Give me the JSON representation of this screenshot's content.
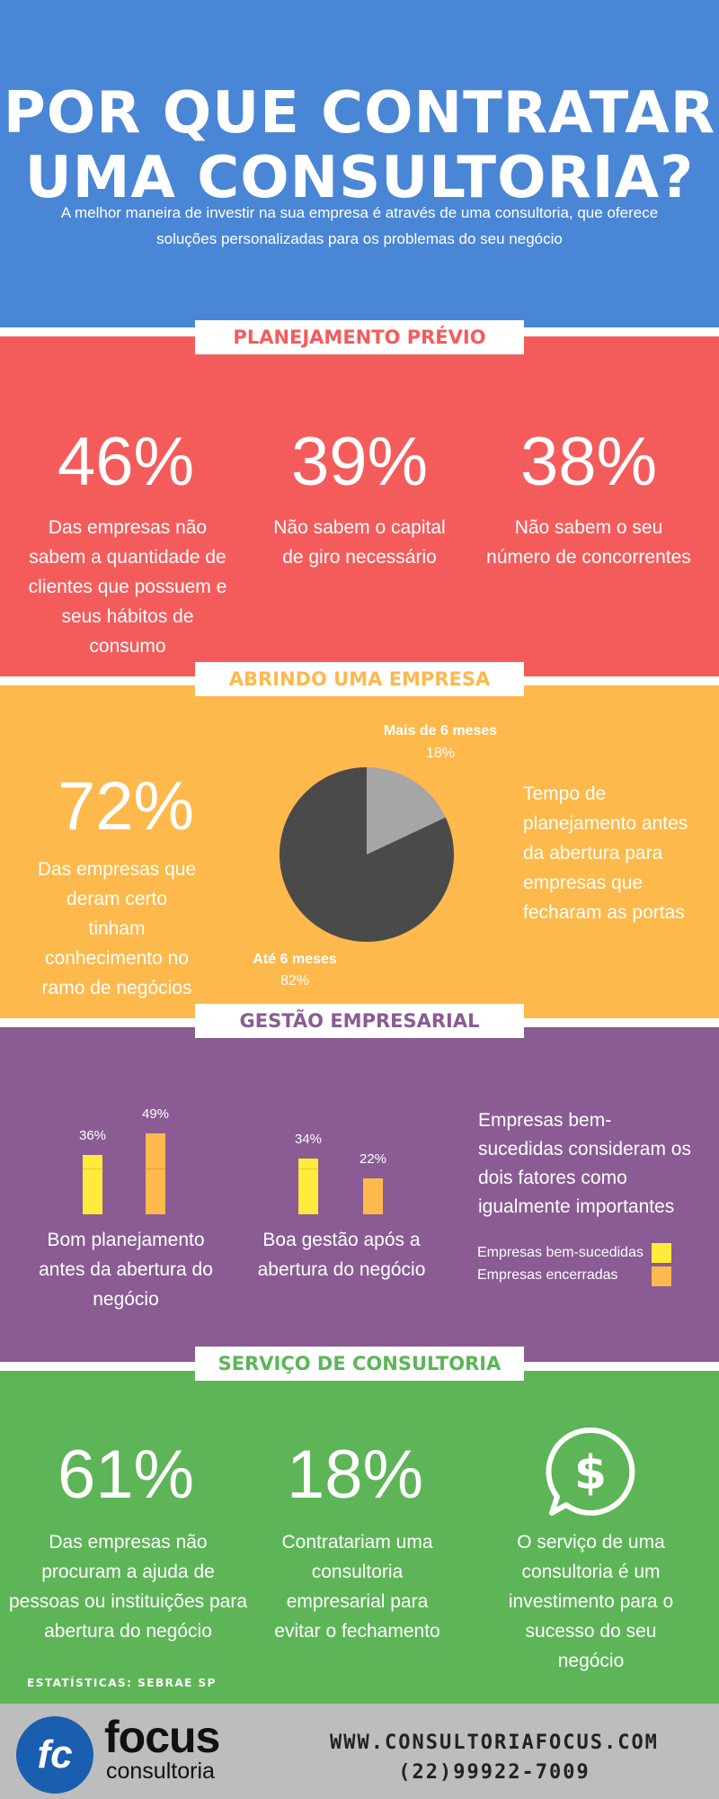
{
  "header": {
    "title": "POR QUE CONTRATAR\nUMA CONSULTORIA?",
    "subtitle": "A melhor maneira de investir na sua empresa é através de uma consultoria, que oferece soluções personalizadas para os problemas do seu negócio"
  },
  "sections": {
    "planejamento": {
      "label": "PLANEJAMENTO PRÉVIO",
      "color": "#F45C5C",
      "stats": [
        {
          "value": "46%",
          "text": "Das empresas não sabem a quantidade de clientes que possuem e seus hábitos de consumo"
        },
        {
          "value": "39%",
          "text": "Não sabem o capital de giro necessário"
        },
        {
          "value": "38%",
          "text": "Não sabem o seu número de concorrentes"
        }
      ]
    },
    "abrindo": {
      "label": "ABRINDO UMA EMPRESA",
      "color": "#FDB94C",
      "stat": {
        "value": "72%",
        "text": "Das empresas que deram certo tinham conhecimento no ramo de negócios"
      },
      "side_text": "Tempo de planejamento antes da abertura para empresas que fecharam as portas"
    },
    "gestao": {
      "label": "GESTÃO EMPRESARIAL",
      "color": "#8A5C93",
      "group1_label": "Bom planejamento antes da abertura do negócio",
      "group2_label": "Boa gestão após a abertura do negócio",
      "side_text": "Empresas bem-sucedidas consideram os dois fatores como igualmente importantes",
      "legend": [
        "Empresas bem-sucedidas",
        "Empresas encerradas"
      ],
      "legend_colors": [
        "#FFEB3B",
        "#FDB94C"
      ]
    },
    "servico": {
      "label": "SERVIÇO DE CONSULTORIA",
      "color": "#5DB558",
      "stats": [
        {
          "value": "61%",
          "text": "Das empresas não procuram a ajuda de pessoas ou instituições para abertura do negócio"
        },
        {
          "value": "18%",
          "text": "Contratariam uma consultoria empresarial para evitar o fechamento"
        }
      ],
      "icon": "dollar-speech-bubble-icon",
      "icon_text": "O serviço de uma consultoria é um investimento para o sucesso do seu negócio",
      "source": "ESTATÍSTICAS: SEBRAE SP"
    }
  },
  "chart_data": [
    {
      "type": "pie",
      "title": "",
      "categories": [
        "Mais de 6 meses",
        "Até 6 meses"
      ],
      "values": [
        18,
        82
      ],
      "value_labels": [
        "18%",
        "82%"
      ],
      "colors": [
        "#A6A6A6",
        "#4A4A4A"
      ]
    },
    {
      "type": "bar",
      "title": "",
      "categories": [
        "Bom planejamento antes da abertura do negócio",
        "Boa gestão após a abertura do negócio"
      ],
      "series": [
        {
          "name": "Empresas bem-sucedidas",
          "values": [
            36,
            34
          ],
          "labels": [
            "36%",
            "34%"
          ],
          "color": "#FFEB3B"
        },
        {
          "name": "Empresas encerradas",
          "values": [
            49,
            22
          ],
          "labels": [
            "49%",
            "22%"
          ],
          "color": "#FDB94C"
        }
      ],
      "ylim": [
        0,
        50
      ]
    }
  ],
  "footer": {
    "logo_mark": "fc",
    "logo_name": "focus",
    "logo_sub": "consultoria",
    "url": "WWW.CONSULTORIAFOCUS.COM",
    "phone": "(22)99922-7009"
  }
}
